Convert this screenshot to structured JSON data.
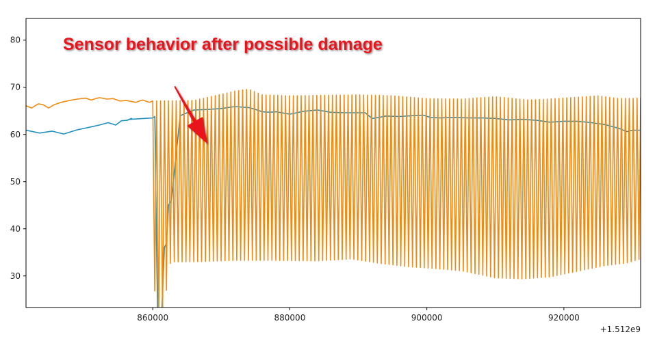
{
  "chart_data": {
    "type": "line",
    "title": "",
    "xlabel": "",
    "ylabel": "",
    "xlim": [
      841500,
      931200
    ],
    "ylim": [
      23.3,
      84.6
    ],
    "x_offset_label": "+1.512e9",
    "x_ticks": [
      {
        "value": 860000,
        "label": "860000"
      },
      {
        "value": 880000,
        "label": "880000"
      },
      {
        "value": 900000,
        "label": "900000"
      },
      {
        "value": 920000,
        "label": "920000"
      }
    ],
    "y_ticks": [
      {
        "value": 30,
        "label": "30"
      },
      {
        "value": 40,
        "label": "40"
      },
      {
        "value": 50,
        "label": "50"
      },
      {
        "value": 60,
        "label": "60"
      },
      {
        "value": 70,
        "label": "70"
      },
      {
        "value": 80,
        "label": "80"
      }
    ],
    "grid": false,
    "series": [
      {
        "color": "#1f8fbf",
        "x": [
          841500,
          843500,
          845300,
          847000,
          849000,
          851000,
          852200,
          853500,
          854600,
          855400,
          856200,
          856900,
          856250,
          856600,
          860000,
          860300,
          860700,
          861300,
          861700,
          862000,
          862300,
          862700,
          864000,
          866000,
          868000,
          870000,
          872000,
          874000,
          875000,
          876000,
          877000,
          878000,
          880000,
          882000,
          884000,
          886000,
          888000,
          890000,
          891000,
          892000,
          893000,
          894000,
          896000,
          898000,
          899500,
          900500,
          902000,
          904000,
          906000,
          908000,
          910000,
          912000,
          914000,
          916000,
          918000,
          920000,
          922000,
          924000,
          926000,
          928000,
          929200,
          930000,
          931200
        ],
        "y": [
          60.9,
          60.3,
          60.7,
          60.1,
          61.0,
          61.6,
          62.0,
          62.5,
          62.0,
          62.9,
          63.0,
          63.4,
          63.0,
          63.2,
          63.5,
          63.8,
          22.0,
          22.0,
          36.0,
          37.0,
          45.0,
          46.0,
          64.0,
          65.2,
          65.3,
          65.5,
          65.9,
          65.7,
          65.3,
          64.8,
          64.7,
          64.8,
          64.3,
          64.9,
          65.2,
          64.7,
          64.6,
          64.6,
          64.6,
          63.4,
          63.6,
          63.9,
          63.8,
          64.0,
          64.1,
          63.6,
          63.5,
          63.6,
          63.5,
          63.5,
          63.4,
          63.1,
          63.2,
          63.0,
          62.6,
          62.8,
          62.8,
          62.5,
          62.1,
          61.3,
          60.6,
          60.9,
          60.9
        ]
      },
      {
        "color": "#f0890e",
        "x": [
          841500,
          842300,
          843300,
          844000,
          844800,
          845600,
          846600,
          847800,
          849000,
          850200,
          851000,
          852200,
          853300,
          854200,
          855200,
          856200,
          857500,
          858500,
          859500,
          860000
        ],
        "y": [
          66.1,
          65.6,
          66.5,
          66.3,
          65.6,
          66.3,
          66.8,
          67.2,
          67.5,
          67.7,
          67.3,
          67.8,
          67.5,
          67.6,
          67.1,
          67.2,
          66.8,
          67.3,
          66.8,
          67.1
        ],
        "oscillation": {
          "x_start": 860000,
          "x_end": 931200,
          "period": 570,
          "top_x": [
            860000,
            866000,
            872000,
            874000,
            876000,
            880000,
            885000,
            890000,
            895000,
            900000,
            905000,
            910000,
            915000,
            920000,
            925000,
            928000,
            931200
          ],
          "top_y": [
            67.1,
            67.2,
            69.2,
            69.6,
            68.4,
            68.2,
            68.3,
            68.4,
            68.2,
            67.6,
            67.5,
            68.0,
            67.3,
            67.7,
            68.2,
            67.6,
            67.7
          ],
          "bottom_x": [
            860000,
            860600,
            861300,
            862600,
            866000,
            872000,
            878000,
            884000,
            889000,
            893000,
            897000,
            901000,
            905000,
            910000,
            914000,
            918000,
            922000,
            926000,
            929000,
            931200
          ],
          "bottom_y": [
            33.0,
            20.0,
            20.0,
            33.0,
            33.0,
            33.3,
            33.3,
            33.2,
            33.6,
            32.7,
            32.0,
            31.6,
            31.1,
            29.6,
            29.4,
            29.8,
            31.0,
            32.2,
            32.7,
            33.6
          ]
        }
      }
    ],
    "annotation": {
      "text": "Sensor behavior after possible damage",
      "color": "#e8121b",
      "arrow_from": [
        863200,
        70.2
      ],
      "arrow_to": [
        868000,
        58.0
      ]
    }
  }
}
